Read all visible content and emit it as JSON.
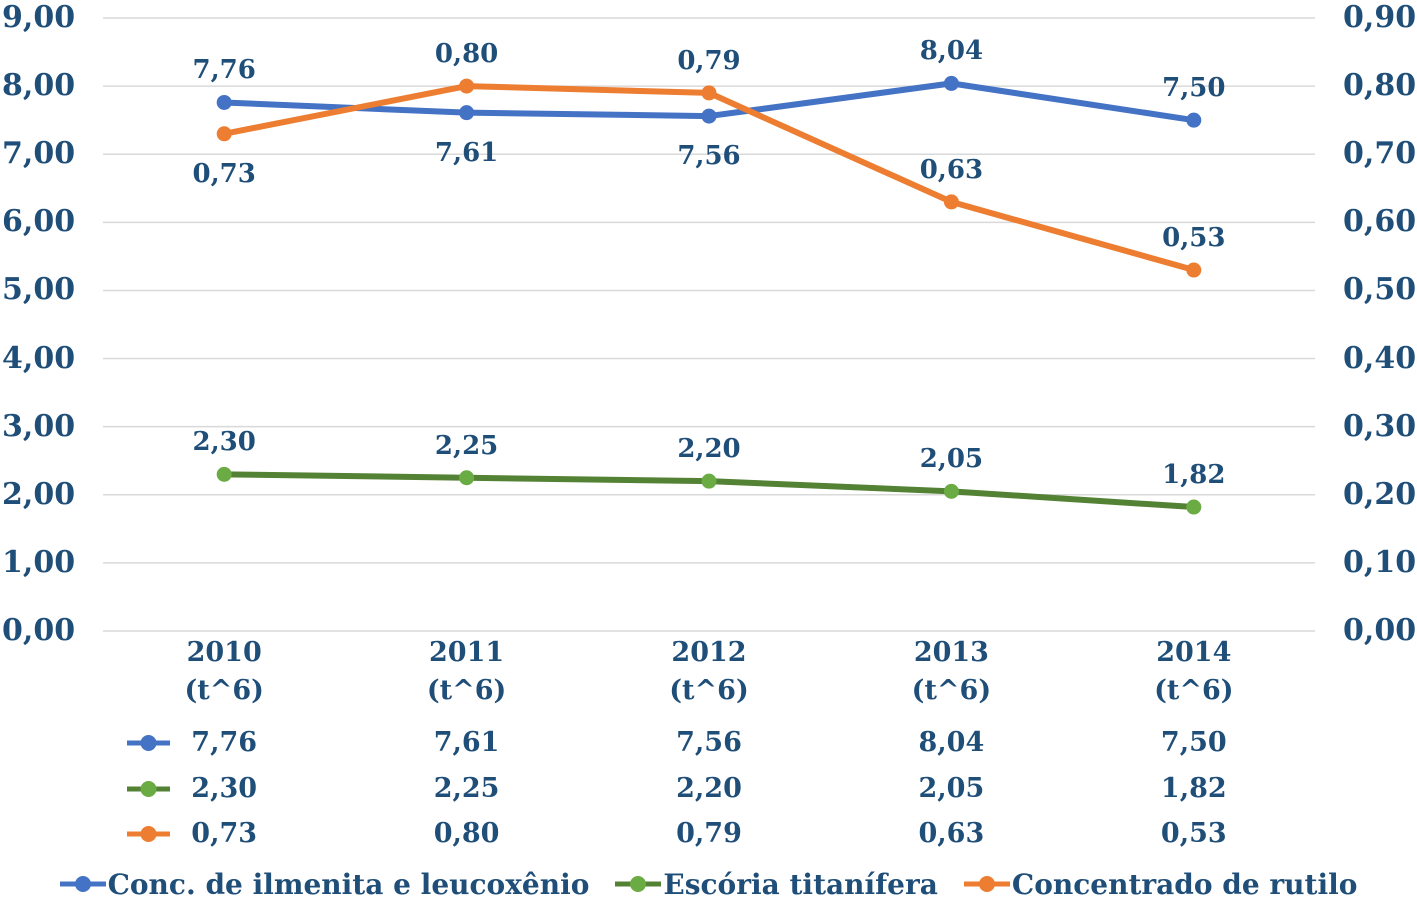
{
  "colors": {
    "text": "#1F4E79",
    "grid": "#D9D9D9",
    "blue": "#4472C4",
    "green_line": "#548235",
    "green_marker": "#6AAB44",
    "orange": "#ED7D31"
  },
  "chart_data": {
    "type": "line",
    "title": "",
    "categories": [
      "2010",
      "2011",
      "2012",
      "2013",
      "2014"
    ],
    "category_unit": "(t^6)",
    "series": [
      {
        "name": "Conc. de ilmenita e leucoxênio",
        "axis": "left",
        "color": "#4472C4",
        "marker_color": "#4472C4",
        "values": [
          7.76,
          7.61,
          7.56,
          8.04,
          7.5
        ],
        "labels": [
          "7,76",
          "7,61",
          "7,56",
          "8,04",
          "7,50"
        ],
        "label_side": [
          "above",
          "below",
          "below",
          "above",
          "above"
        ]
      },
      {
        "name": "Escória titanífera",
        "axis": "left",
        "color": "#548235",
        "marker_color": "#6AAB44",
        "values": [
          2.3,
          2.25,
          2.2,
          2.05,
          1.82
        ],
        "labels": [
          "2,30",
          "2,25",
          "2,20",
          "2,05",
          "1,82"
        ],
        "label_side": [
          "above",
          "above",
          "above",
          "above",
          "above"
        ]
      },
      {
        "name": "Concentrado de rutilo",
        "axis": "right",
        "color": "#ED7D31",
        "marker_color": "#ED7D31",
        "values": [
          0.73,
          0.8,
          0.79,
          0.63,
          0.53
        ],
        "labels": [
          "0,73",
          "0,80",
          "0,79",
          "0,63",
          "0,53"
        ],
        "label_side": [
          "below",
          "above",
          "above",
          "above",
          "above"
        ]
      }
    ],
    "left_axis": {
      "min": 0,
      "max": 9,
      "ticks": [
        "9,00",
        "8,00",
        "7,00",
        "6,00",
        "5,00",
        "4,00",
        "3,00",
        "2,00",
        "1,00",
        "0,00"
      ]
    },
    "right_axis": {
      "min": 0,
      "max": 0.9,
      "ticks": [
        "0,90",
        "0,80",
        "0,70",
        "0,60",
        "0,50",
        "0,40",
        "0,30",
        "0,20",
        "0,10",
        "0,00"
      ]
    },
    "grid": true,
    "legend_position": "bottom",
    "data_table": true
  }
}
